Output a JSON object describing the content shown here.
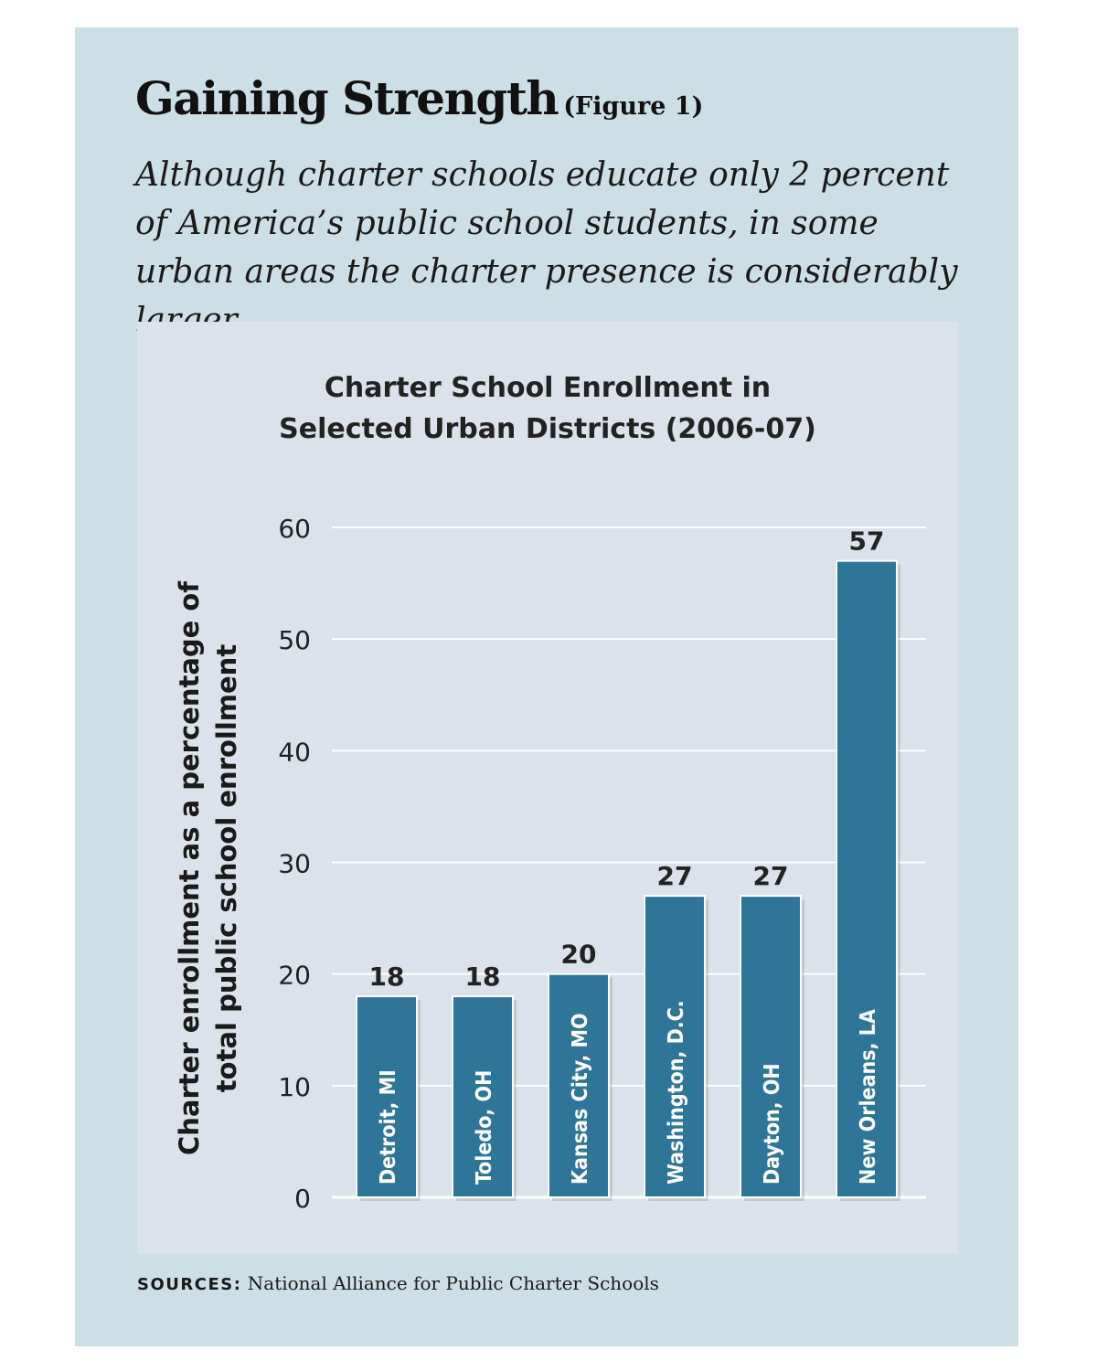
{
  "figure": {
    "heading": "Gaining Strength",
    "figure_label": "(Figure 1)",
    "subtitle": "Although charter schools educate only 2 percent of America’s public school students, in some urban areas the charter presence is considerably larger.",
    "sources_label": "SOURCES:",
    "sources_text": "National Alliance for Public Charter Schools"
  },
  "colors": {
    "panel": "#cddfe6",
    "chart_background": "#dbe2eb",
    "bar": "#2f7597",
    "gridline": "#ffffff"
  },
  "chart_data": {
    "type": "bar",
    "title_lines": [
      "Charter School Enrollment in",
      "Selected Urban Districts (2006-07)"
    ],
    "ylabel_lines": [
      "Charter enrollment as a percentage of",
      "total public school enrollment"
    ],
    "xlabel": "",
    "categories": [
      "Detroit, MI",
      "Toledo, OH",
      "Kansas City, MO",
      "Washington, D.C.",
      "Dayton, OH",
      "New Orleans, LA"
    ],
    "values": [
      18,
      18,
      20,
      27,
      27,
      57
    ],
    "ylim": [
      0,
      60
    ],
    "yticks": [
      0,
      10,
      20,
      30,
      40,
      50,
      60
    ],
    "grid": true,
    "category_labels_inside_bars": true
  }
}
